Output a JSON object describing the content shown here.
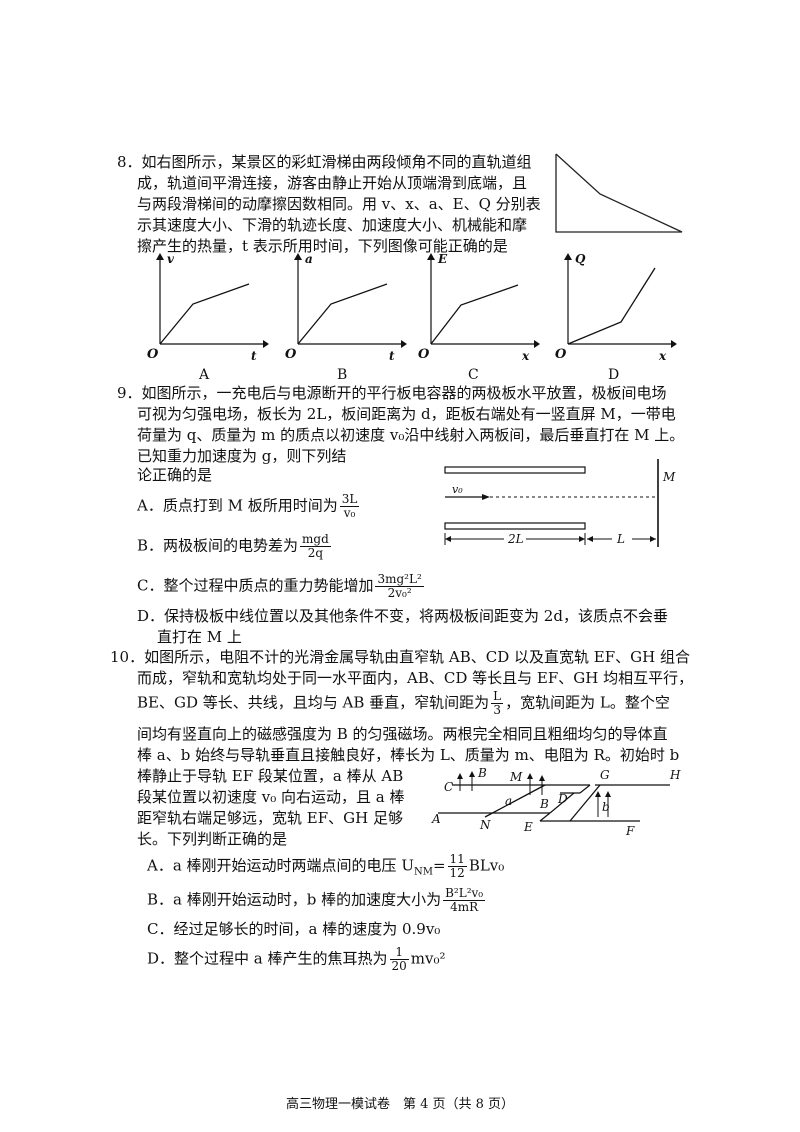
{
  "q8": {
    "lines": [
      "8．如右图所示，某景区的彩虹滑梯由两段倾角不同的直轨道组",
      "成，轨道间平滑连接，游客由静止开始从顶端滑到底端，且",
      "与两段滑梯间的动摩擦因数相同。用 v、x、a、E、Q 分别表",
      "示其速度大小、下滑的轨迹长度、加速度大小、机械能和摩",
      "擦产生的热量，t 表示所用时间，下列图像可能正确的是"
    ],
    "graphs": [
      {
        "option": "A",
        "y": "v",
        "x": "t",
        "origin": "O"
      },
      {
        "option": "B",
        "y": "a",
        "x": "t",
        "origin": "O"
      },
      {
        "option": "C",
        "y": "E",
        "x": "x",
        "origin": "O"
      },
      {
        "option": "D",
        "y": "Q",
        "x": "x",
        "origin": "O"
      }
    ]
  },
  "q9": {
    "lines": [
      "9．如图所示，一充电后与电源断开的平行板电容器的两极板水平放置，极板间电场",
      "可视为匀强电场，板长为 2L，板间距离为 d，距板右端处有一竖直屏 M，一带电",
      "荷量为 q、质量为 m 的质点以初速度 v₀沿中线射入两板间，最后垂直打在 M 上。",
      "已知重力加速度为 g，则下列结",
      "论正确的是"
    ],
    "optA": {
      "text": "A．质点打到 M 板所用时间为",
      "num": "3L",
      "den": "v₀"
    },
    "optB": {
      "text": "B．两极板间的电势差为",
      "num": "mgd",
      "den": "2q"
    },
    "optC": {
      "text": "C．整个过程中质点的重力势能增加",
      "num": "3mg²L²",
      "den": "2v₀²"
    },
    "optD": [
      "D．保持极板中线位置以及其他条件不变，将两极板间距变为 2d，该质点不会垂",
      "直打在 M 上"
    ],
    "figure": {
      "screen": "M",
      "velocity": "v₀",
      "plate_len": "2L",
      "gap": "L"
    }
  },
  "q10": {
    "line1": "10．如图所示，电阻不计的光滑金属导轨由直窄轨 AB、CD 以及直宽轨 EF、GH 组合",
    "line2": "而成，窄轨和宽轨均处于同一水平面内，AB、CD 等长且与 EF、GH 均相互平行，",
    "line3a": "BE、GD 等长、共线，且均与 AB 垂直，窄轨间距为",
    "line3frac": {
      "num": "L",
      "den": "3"
    },
    "line3b": "，宽轨间距为 L。整个空",
    "line4": "间均有竖直向上的磁感强度为 B 的匀强磁场。两根完全相同且粗细均匀的导体直",
    "line5": "棒 a、b 始终与导轨垂直且接触良好，棒长为 L、质量为 m、电阻为 R。初始时 b",
    "line6": "棒静止于导轨 EF 段某位置，a 棒从 AB",
    "line7": "段某位置以初速度 v₀ 向右运动，且 a 棒",
    "line8": "距窄轨右端足够远，宽轨 EF、GH 足够",
    "line9": "长。下列判断正确的是",
    "optA": {
      "text": "A．a 棒刚开始运动时两端点间的电压 U",
      "sub": "NM",
      "eq": "=",
      "num": "11",
      "den": "12",
      "tail": "BLv₀"
    },
    "optB": {
      "text": "B．a 棒刚开始运动时，b 棒的加速度大小为",
      "num": "B²L²v₀",
      "den": "4mR"
    },
    "optC": {
      "text": "C．经过足够长的时间，a 棒的速度为 0.9v₀"
    },
    "optD": {
      "text": "D．整个过程中 a 棒产生的焦耳热为",
      "num": "1",
      "den": "20",
      "tail": "mv₀²"
    },
    "figure_labels": [
      "C",
      "B",
      "M",
      "G",
      "H",
      "a",
      "B",
      "D",
      "b",
      "A",
      "N",
      "E",
      "F"
    ]
  },
  "footer": "高三物理一模试卷　第 4 页（共 8 页）"
}
